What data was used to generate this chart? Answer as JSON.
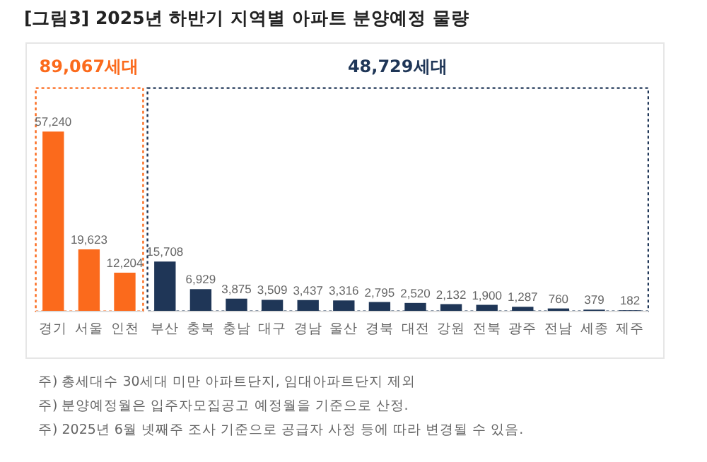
{
  "chart_data": {
    "type": "bar",
    "title": "[그림3] 2025년 하반기 지역별 아파트 분양예정 물량",
    "categories": [
      "경기",
      "서울",
      "인천",
      "부산",
      "충북",
      "충남",
      "대구",
      "경남",
      "울산",
      "경북",
      "대전",
      "강원",
      "전북",
      "광주",
      "전남",
      "세종",
      "제주"
    ],
    "values": [
      57240,
      19623,
      12204,
      15708,
      6929,
      3875,
      3509,
      3437,
      3316,
      2795,
      2520,
      2132,
      1900,
      1287,
      760,
      379,
      182
    ],
    "colors": [
      "#fb6a1c",
      "#fb6a1c",
      "#fb6a1c",
      "#1f3657",
      "#1f3657",
      "#1f3657",
      "#1f3657",
      "#1f3657",
      "#1f3657",
      "#1f3657",
      "#1f3657",
      "#1f3657",
      "#1f3657",
      "#1f3657",
      "#1f3657",
      "#1f3657",
      "#1f3657"
    ],
    "value_labels": [
      "57,240",
      "19,623",
      "12,204",
      "15,708",
      "6,929",
      "3,875",
      "3,509",
      "3,437",
      "3,316",
      "2,795",
      "2,520",
      "2,132",
      "1,900",
      "1,287",
      "760",
      "379",
      "182"
    ],
    "annotations": [
      "89,067세대",
      "48,729세대",
      "주) 총세대수 30세대 미만 아파트단지, 임대아파트단지 제외",
      "주) 분양예정월은 입주자모집공고 예정월을 기준으로 산정.",
      "주) 2025년 6월 넷째주 조사 기준으로 공급자 사정 등에 따라 변경될 수 있음."
    ]
  }
}
